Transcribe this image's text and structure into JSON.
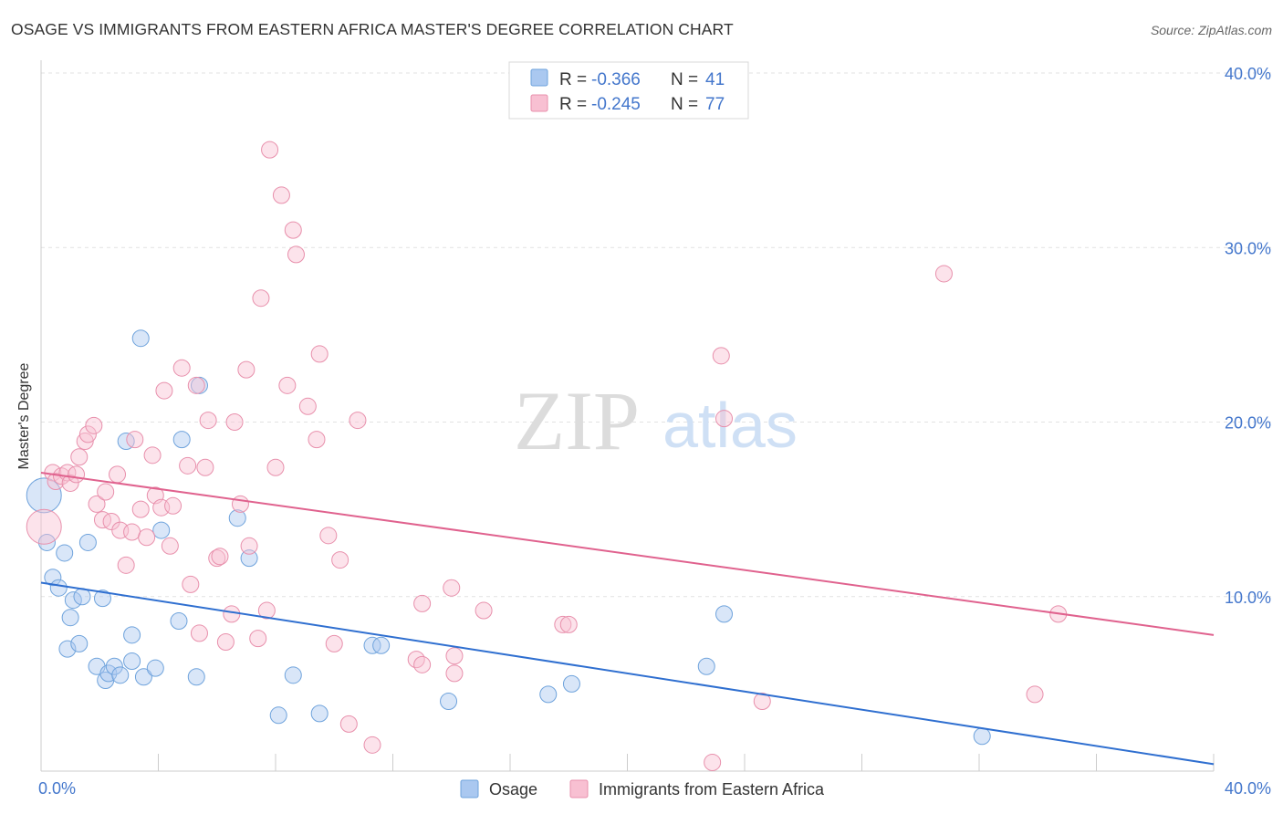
{
  "title": "OSAGE VS IMMIGRANTS FROM EASTERN AFRICA MASTER'S DEGREE CORRELATION CHART",
  "source": "Source: ZipAtlas.com",
  "watermark": {
    "zip": "ZIP",
    "atlas": "atlas"
  },
  "colors": {
    "blue_fill": "#aac8f0",
    "blue_stroke": "#6fa3dc",
    "blue_line": "#2f6fd0",
    "pink_fill": "#f8c0d2",
    "pink_stroke": "#e890ac",
    "pink_line": "#e0628e",
    "axis_text": "#4477cc"
  },
  "legend_top": [
    {
      "r_label": "R = ",
      "r_value": "-0.366",
      "n_label": "N = ",
      "n_value": "41",
      "color": "blue"
    },
    {
      "r_label": "R = ",
      "r_value": "-0.245",
      "n_label": "N = ",
      "n_value": "77",
      "color": "pink"
    }
  ],
  "legend_bottom": [
    {
      "label": "Osage",
      "color": "blue"
    },
    {
      "label": "Immigrants from Eastern Africa",
      "color": "pink"
    }
  ],
  "chart_data": {
    "type": "scatter",
    "title": "OSAGE VS IMMIGRANTS FROM EASTERN AFRICA MASTER'S DEGREE CORRELATION CHART",
    "xlabel": "",
    "ylabel": "Master's Degree",
    "xlim": [
      0,
      40
    ],
    "ylim": [
      0,
      40
    ],
    "x_tick_labels": [
      "0.0%",
      "40.0%"
    ],
    "y_ticks": [
      10,
      20,
      30,
      40
    ],
    "y_tick_labels": [
      "10.0%",
      "20.0%",
      "30.0%",
      "40.0%"
    ],
    "grid": true,
    "series": [
      {
        "name": "Osage",
        "color": "blue",
        "r": -0.366,
        "n": 41,
        "trend": {
          "x": [
            0,
            40
          ],
          "y": [
            10.8,
            0.4
          ]
        },
        "points": [
          {
            "x": 0.1,
            "y": 15.8,
            "big": true
          },
          {
            "x": 0.2,
            "y": 13.1
          },
          {
            "x": 0.4,
            "y": 11.1
          },
          {
            "x": 0.6,
            "y": 10.5
          },
          {
            "x": 0.8,
            "y": 12.5
          },
          {
            "x": 0.9,
            "y": 7.0
          },
          {
            "x": 1.0,
            "y": 8.8
          },
          {
            "x": 1.1,
            "y": 9.8
          },
          {
            "x": 1.3,
            "y": 7.3
          },
          {
            "x": 1.4,
            "y": 10.0
          },
          {
            "x": 1.6,
            "y": 13.1
          },
          {
            "x": 1.9,
            "y": 6.0
          },
          {
            "x": 2.1,
            "y": 9.9
          },
          {
            "x": 2.2,
            "y": 5.2
          },
          {
            "x": 2.3,
            "y": 5.6
          },
          {
            "x": 2.5,
            "y": 6.0
          },
          {
            "x": 2.7,
            "y": 5.5
          },
          {
            "x": 2.9,
            "y": 18.9
          },
          {
            "x": 3.1,
            "y": 7.8
          },
          {
            "x": 3.1,
            "y": 6.3
          },
          {
            "x": 3.4,
            "y": 24.8
          },
          {
            "x": 3.5,
            "y": 5.4
          },
          {
            "x": 3.9,
            "y": 5.9
          },
          {
            "x": 4.1,
            "y": 13.8
          },
          {
            "x": 4.7,
            "y": 8.6
          },
          {
            "x": 4.8,
            "y": 19.0
          },
          {
            "x": 5.3,
            "y": 5.4
          },
          {
            "x": 5.4,
            "y": 22.1
          },
          {
            "x": 6.7,
            "y": 14.5
          },
          {
            "x": 7.1,
            "y": 12.2
          },
          {
            "x": 8.1,
            "y": 3.2
          },
          {
            "x": 8.6,
            "y": 5.5
          },
          {
            "x": 9.5,
            "y": 3.3
          },
          {
            "x": 11.3,
            "y": 7.2
          },
          {
            "x": 11.6,
            "y": 7.2
          },
          {
            "x": 13.9,
            "y": 4.0
          },
          {
            "x": 17.3,
            "y": 4.4
          },
          {
            "x": 18.1,
            "y": 5.0
          },
          {
            "x": 22.7,
            "y": 6.0
          },
          {
            "x": 23.3,
            "y": 9.0
          },
          {
            "x": 32.1,
            "y": 2.0
          }
        ]
      },
      {
        "name": "Immigrants from Eastern Africa",
        "color": "pink",
        "r": -0.245,
        "n": 77,
        "trend": {
          "x": [
            0,
            40
          ],
          "y": [
            17.1,
            7.8
          ]
        },
        "points": [
          {
            "x": 0.1,
            "y": 14.0,
            "big": true
          },
          {
            "x": 0.4,
            "y": 17.1
          },
          {
            "x": 0.5,
            "y": 16.6
          },
          {
            "x": 0.7,
            "y": 16.9
          },
          {
            "x": 0.9,
            "y": 17.1
          },
          {
            "x": 1.0,
            "y": 16.5
          },
          {
            "x": 1.2,
            "y": 17.0
          },
          {
            "x": 1.3,
            "y": 18.0
          },
          {
            "x": 1.5,
            "y": 18.9
          },
          {
            "x": 1.6,
            "y": 19.3
          },
          {
            "x": 1.8,
            "y": 19.8
          },
          {
            "x": 1.9,
            "y": 15.3
          },
          {
            "x": 2.1,
            "y": 14.4
          },
          {
            "x": 2.2,
            "y": 16.0
          },
          {
            "x": 2.4,
            "y": 14.3
          },
          {
            "x": 2.6,
            "y": 17.0
          },
          {
            "x": 2.7,
            "y": 13.8
          },
          {
            "x": 2.9,
            "y": 11.8
          },
          {
            "x": 3.1,
            "y": 13.7
          },
          {
            "x": 3.2,
            "y": 19.0
          },
          {
            "x": 3.4,
            "y": 15.0
          },
          {
            "x": 3.6,
            "y": 13.4
          },
          {
            "x": 3.8,
            "y": 18.1
          },
          {
            "x": 3.9,
            "y": 15.8
          },
          {
            "x": 4.1,
            "y": 15.1
          },
          {
            "x": 4.2,
            "y": 21.8
          },
          {
            "x": 4.4,
            "y": 12.9
          },
          {
            "x": 4.5,
            "y": 15.2
          },
          {
            "x": 4.8,
            "y": 23.1
          },
          {
            "x": 5.0,
            "y": 17.5
          },
          {
            "x": 5.1,
            "y": 10.7
          },
          {
            "x": 5.3,
            "y": 22.1
          },
          {
            "x": 5.4,
            "y": 7.9
          },
          {
            "x": 5.6,
            "y": 17.4
          },
          {
            "x": 5.7,
            "y": 20.1
          },
          {
            "x": 6.0,
            "y": 12.2
          },
          {
            "x": 6.1,
            "y": 12.3
          },
          {
            "x": 6.3,
            "y": 7.4
          },
          {
            "x": 6.5,
            "y": 9.0
          },
          {
            "x": 6.6,
            "y": 20.0
          },
          {
            "x": 6.8,
            "y": 15.3
          },
          {
            "x": 7.0,
            "y": 23.0
          },
          {
            "x": 7.1,
            "y": 12.9
          },
          {
            "x": 7.4,
            "y": 7.6
          },
          {
            "x": 7.5,
            "y": 27.1
          },
          {
            "x": 7.7,
            "y": 9.2
          },
          {
            "x": 7.8,
            "y": 35.6
          },
          {
            "x": 8.0,
            "y": 17.4
          },
          {
            "x": 8.2,
            "y": 33.0
          },
          {
            "x": 8.4,
            "y": 22.1
          },
          {
            "x": 8.6,
            "y": 31.0
          },
          {
            "x": 8.7,
            "y": 29.6
          },
          {
            "x": 9.1,
            "y": 20.9
          },
          {
            "x": 9.4,
            "y": 19.0
          },
          {
            "x": 9.5,
            "y": 23.9
          },
          {
            "x": 9.8,
            "y": 13.5
          },
          {
            "x": 10.0,
            "y": 7.3
          },
          {
            "x": 10.2,
            "y": 12.1
          },
          {
            "x": 10.5,
            "y": 2.7
          },
          {
            "x": 10.8,
            "y": 20.1
          },
          {
            "x": 11.3,
            "y": 1.5
          },
          {
            "x": 12.8,
            "y": 6.4
          },
          {
            "x": 13.0,
            "y": 6.1
          },
          {
            "x": 13.0,
            "y": 9.6
          },
          {
            "x": 14.0,
            "y": 10.5
          },
          {
            "x": 14.1,
            "y": 6.6
          },
          {
            "x": 14.1,
            "y": 5.6
          },
          {
            "x": 15.1,
            "y": 9.2
          },
          {
            "x": 17.8,
            "y": 8.4
          },
          {
            "x": 18.0,
            "y": 8.4
          },
          {
            "x": 22.9,
            "y": 0.5
          },
          {
            "x": 23.2,
            "y": 23.8
          },
          {
            "x": 23.3,
            "y": 20.2
          },
          {
            "x": 24.6,
            "y": 4.0
          },
          {
            "x": 30.8,
            "y": 28.5
          },
          {
            "x": 33.9,
            "y": 4.4
          },
          {
            "x": 34.7,
            "y": 9.0
          }
        ]
      }
    ]
  }
}
